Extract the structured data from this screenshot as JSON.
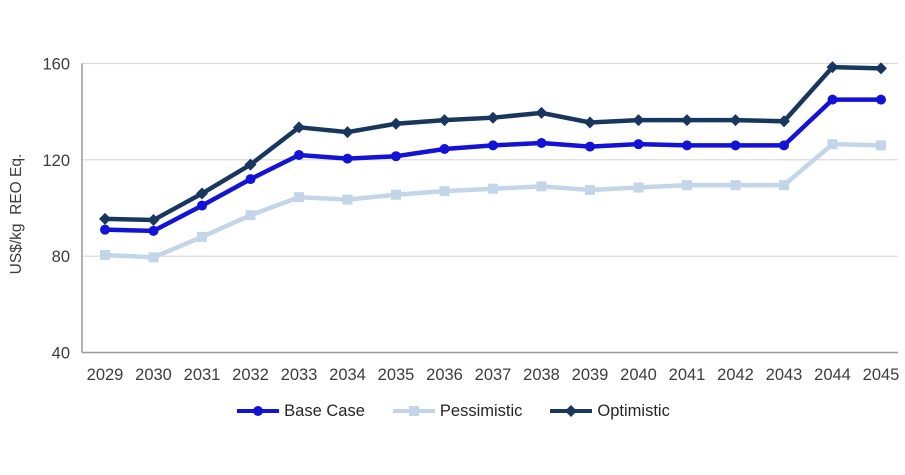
{
  "chart_data": {
    "type": "line",
    "title": "",
    "ylabel": "US$/kg  REO Eq.",
    "xlabel": "",
    "x": [
      2029,
      2030,
      2031,
      2032,
      2033,
      2034,
      2035,
      2036,
      2037,
      2038,
      2039,
      2040,
      2041,
      2042,
      2043,
      2044,
      2045
    ],
    "ylim": [
      40,
      160
    ],
    "yticks": [
      160,
      120,
      80,
      40
    ],
    "grid": "horizontal",
    "legend_position": "bottom",
    "series": [
      {
        "name": "Base Case",
        "marker": "circle",
        "color": "#1313d7",
        "values": [
          91,
          90.5,
          101,
          112,
          122,
          120.5,
          121.5,
          124.5,
          126,
          127,
          125.5,
          126.5,
          126,
          126,
          126,
          145,
          145
        ]
      },
      {
        "name": "Pessimistic",
        "marker": "square",
        "color": "#c3d5e8",
        "values": [
          80.5,
          79.5,
          88,
          97,
          104.5,
          103.5,
          105.5,
          107,
          108,
          109,
          107.5,
          108.5,
          109.5,
          109.5,
          109.5,
          126.5,
          126
        ]
      },
      {
        "name": "Optimistic",
        "marker": "diamond",
        "color": "#17375e",
        "values": [
          95.5,
          95,
          106,
          118,
          133.5,
          131.5,
          135,
          136.5,
          137.5,
          139.5,
          135.5,
          136.5,
          136.5,
          136.5,
          136,
          158.5,
          158
        ]
      }
    ]
  },
  "colors": {
    "grid": "#d9d9d9",
    "axis": "#999999",
    "tick_text": "#3d3d3d",
    "legend_text": "#262626",
    "background": "#ffffff"
  }
}
